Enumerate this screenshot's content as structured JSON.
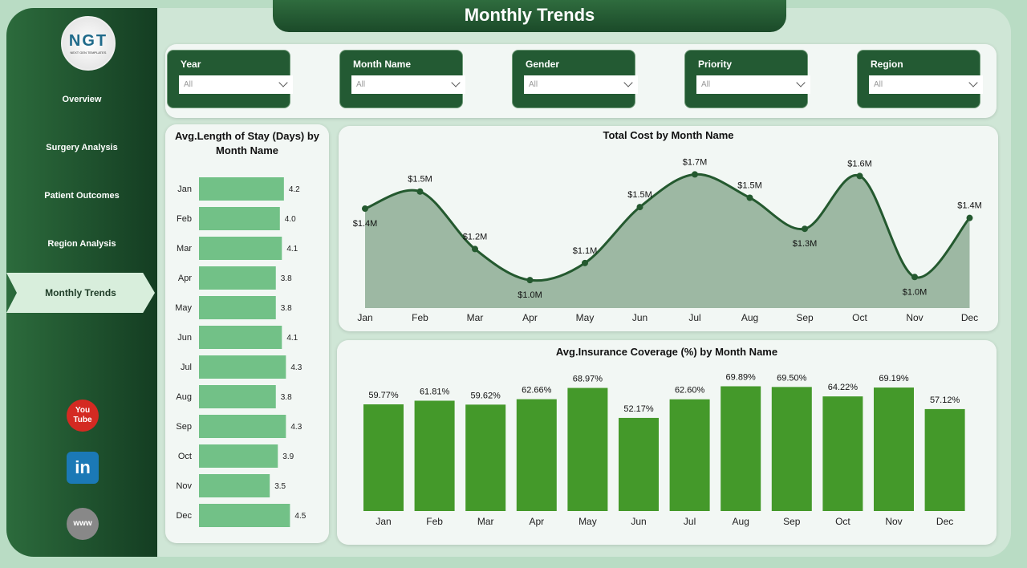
{
  "title": "Monthly Trends",
  "logo": {
    "text": "NGT",
    "sub": "NEXT GEN TEMPLATES"
  },
  "nav": [
    {
      "label": "Overview"
    },
    {
      "label": "Surgery Analysis"
    },
    {
      "label": "Patient Outcomes"
    },
    {
      "label": "Region Analysis"
    },
    {
      "label": "Monthly Trends",
      "active": true
    }
  ],
  "social": [
    {
      "icon": "youtube-icon",
      "label": "You Tube"
    },
    {
      "icon": "linkedin-icon",
      "label": "in"
    },
    {
      "icon": "globe-icon",
      "label": "www"
    }
  ],
  "filters": [
    {
      "label": "Year",
      "value": "All"
    },
    {
      "label": "Month Name",
      "value": "All"
    },
    {
      "label": "Gender",
      "value": "All"
    },
    {
      "label": "Priority",
      "value": "All"
    },
    {
      "label": "Region",
      "value": "All"
    }
  ],
  "colors": {
    "sidebar": "#1f5530",
    "bar_h": "#72c187",
    "line": "#24592f",
    "area": "#9db8a3",
    "column": "#44992a"
  },
  "chart_data": [
    {
      "type": "bar",
      "orientation": "horizontal",
      "title": "Avg.Length of Stay (Days) by Month Name",
      "categories": [
        "Jan",
        "Feb",
        "Mar",
        "Apr",
        "May",
        "Jun",
        "Jul",
        "Aug",
        "Sep",
        "Oct",
        "Nov",
        "Dec"
      ],
      "values": [
        4.2,
        4.0,
        4.1,
        3.8,
        3.8,
        4.1,
        4.3,
        3.8,
        4.3,
        3.9,
        3.5,
        4.5
      ],
      "labels": [
        "4.2",
        "4.0",
        "4.1",
        "3.8",
        "3.8",
        "4.1",
        "4.3",
        "3.8",
        "4.3",
        "3.9",
        "3.5",
        "4.5"
      ]
    },
    {
      "type": "area",
      "title": "Total Cost by Month Name",
      "categories": [
        "Jan",
        "Feb",
        "Mar",
        "Apr",
        "May",
        "Jun",
        "Jul",
        "Aug",
        "Sep",
        "Oct",
        "Nov",
        "Dec"
      ],
      "values": [
        1.44,
        1.55,
        1.18,
        0.98,
        1.09,
        1.45,
        1.66,
        1.51,
        1.31,
        1.65,
        1.0,
        1.38
      ],
      "labels": [
        "$1.4M",
        "$1.5M",
        "$1.2M",
        "$1.0M",
        "$1.1M",
        "$1.5M",
        "$1.7M",
        "$1.5M",
        "$1.3M",
        "$1.6M",
        "$1.0M",
        "$1.4M"
      ],
      "unit": "$M",
      "ylim": [
        0.8,
        1.75
      ]
    },
    {
      "type": "bar",
      "title": "Avg.Insurance Coverage (%) by Month Name",
      "categories": [
        "Jan",
        "Feb",
        "Mar",
        "Apr",
        "May",
        "Jun",
        "Jul",
        "Aug",
        "Sep",
        "Oct",
        "Nov",
        "Dec"
      ],
      "values": [
        59.77,
        61.81,
        59.62,
        62.66,
        68.97,
        52.17,
        62.6,
        69.89,
        69.5,
        64.22,
        69.19,
        57.12
      ],
      "labels": [
        "59.77%",
        "61.81%",
        "59.62%",
        "62.66%",
        "68.97%",
        "52.17%",
        "62.60%",
        "69.89%",
        "69.50%",
        "64.22%",
        "69.19%",
        "57.12%"
      ],
      "ylim": [
        0,
        75
      ]
    }
  ]
}
